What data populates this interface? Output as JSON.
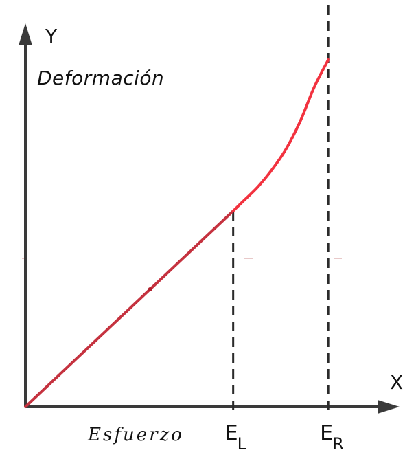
{
  "chart_data": {
    "type": "line",
    "title": "",
    "x_axis_letter": "X",
    "y_axis_letter": "Y",
    "xlabel": "Esfuerzo",
    "ylabel": "Deformación",
    "grid": false,
    "xlim": [
      0,
      100
    ],
    "ylim": [
      0,
      100
    ],
    "ticks": [
      {
        "main": "E",
        "sub": "L",
        "x": 59
      },
      {
        "main": "E",
        "sub": "R",
        "x": 86
      }
    ],
    "series": [
      {
        "color": "#c5323f",
        "x": [
          0,
          59
        ],
        "y": [
          0,
          57
        ]
      },
      {
        "color": "#f2323f",
        "x": [
          59,
          62,
          66,
          70,
          74,
          78,
          82,
          86
        ],
        "y": [
          57,
          60,
          64,
          69,
          75,
          83,
          93,
          101
        ]
      }
    ]
  }
}
